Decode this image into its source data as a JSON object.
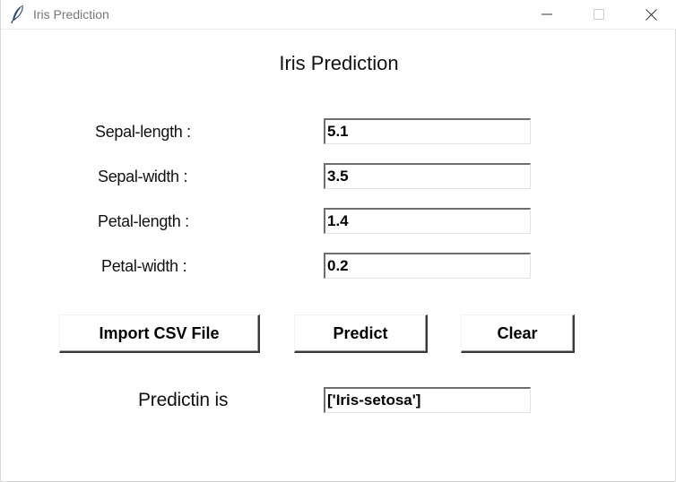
{
  "window": {
    "title": "Iris Prediction"
  },
  "form": {
    "heading": "Iris Prediction",
    "fields": [
      {
        "label": "Sepal-length :",
        "value": "5.1"
      },
      {
        "label": "Sepal-width :",
        "value": "3.5"
      },
      {
        "label": "Petal-length :",
        "value": "1.4"
      },
      {
        "label": "Petal-width :",
        "value": "0.2"
      }
    ]
  },
  "buttons": {
    "import_label": "Import CSV File",
    "predict_label": "Predict",
    "clear_label": "Clear"
  },
  "result": {
    "label": "Predictin is",
    "value": "['Iris-setosa']"
  }
}
